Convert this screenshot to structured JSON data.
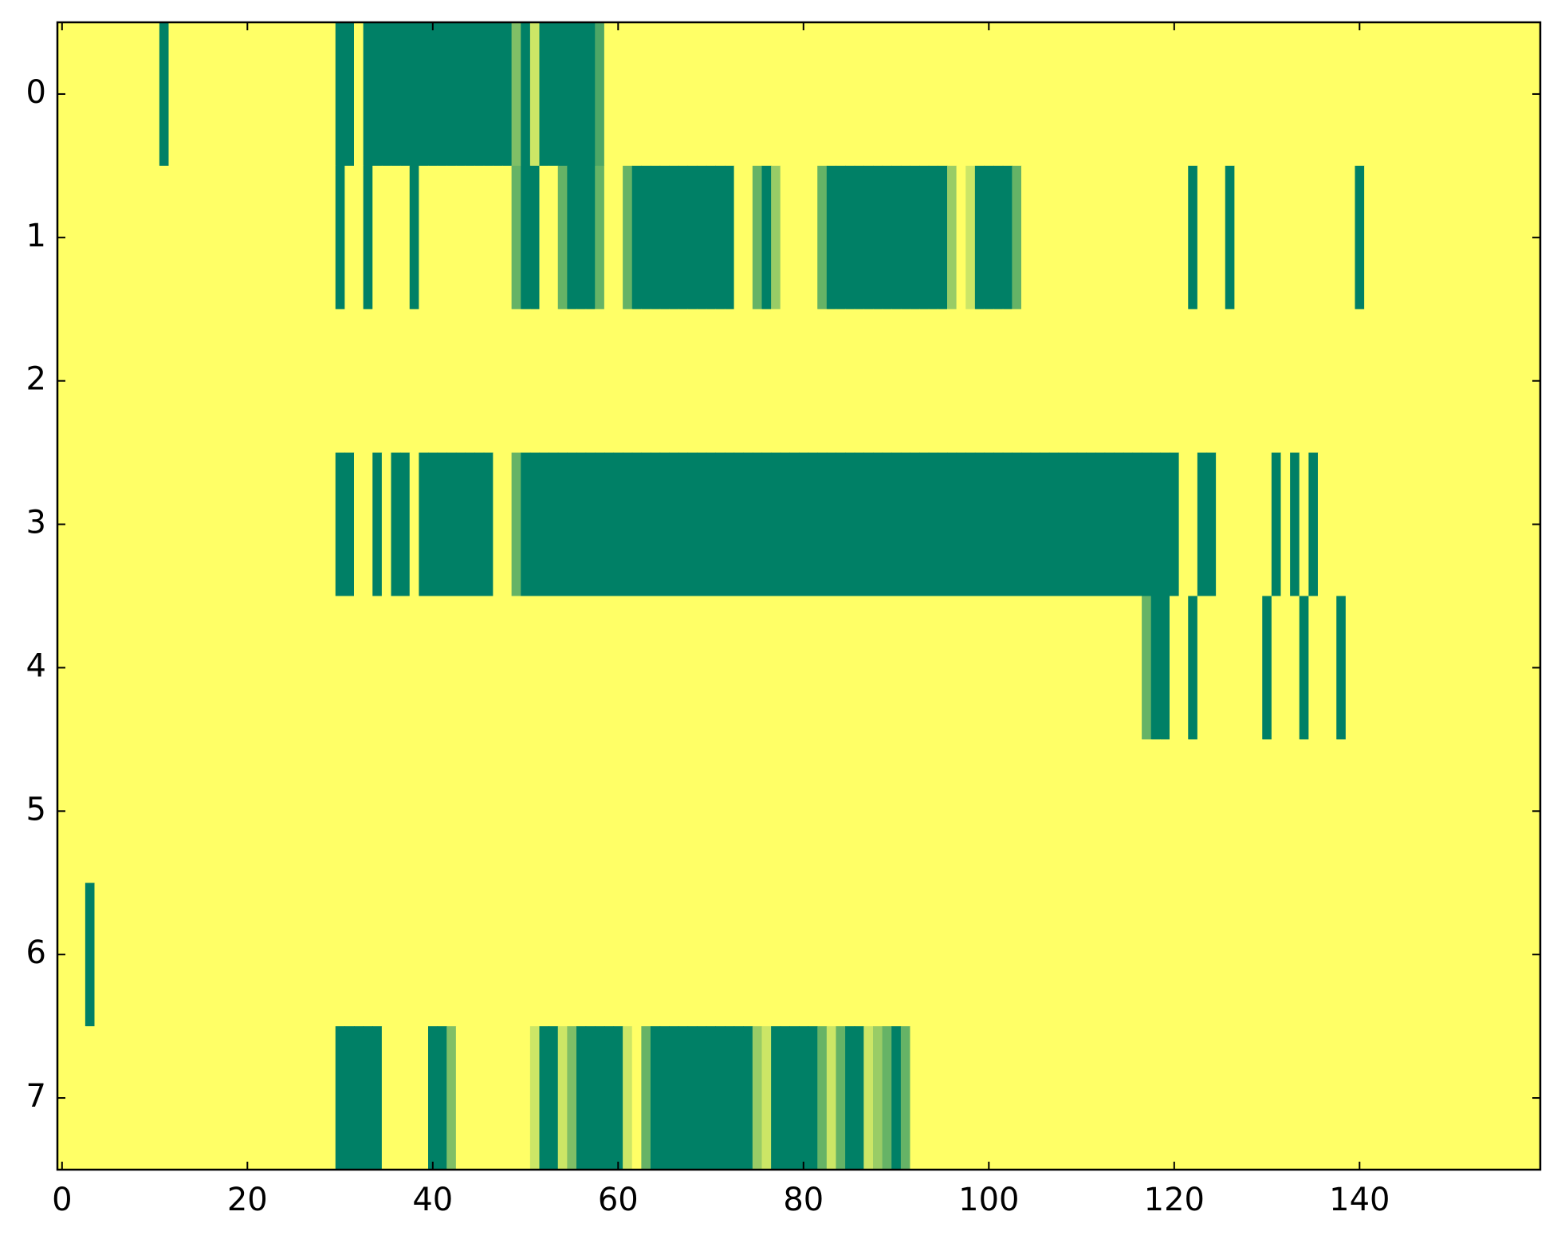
{
  "chart_data": {
    "type": "heatmap",
    "colormap": "summer",
    "clim": [
      0,
      1
    ],
    "xlim": [
      -0.5,
      159.5
    ],
    "ylim": [
      7.5,
      -0.5
    ],
    "xticks": [
      0,
      20,
      40,
      60,
      80,
      100,
      120,
      140
    ],
    "yticks": [
      0,
      1,
      2,
      3,
      4,
      5,
      6,
      7
    ],
    "z": [
      [
        1,
        1,
        1,
        1,
        1,
        1,
        1,
        1,
        1,
        1,
        1,
        0,
        1,
        1,
        1,
        1,
        1,
        1,
        1,
        1,
        1,
        1,
        1,
        1,
        1,
        1,
        1,
        1,
        1,
        1,
        0,
        0,
        1,
        0,
        0,
        0,
        0,
        0,
        0,
        0,
        0,
        0,
        0,
        0,
        0,
        0,
        0,
        0,
        0,
        0.5,
        0,
        0.8,
        0,
        0,
        0,
        0,
        0,
        0,
        0.3,
        1,
        1,
        1,
        1,
        1,
        1,
        1,
        1,
        1,
        1,
        1,
        1,
        1,
        1,
        1,
        1,
        1,
        1,
        1,
        1,
        1,
        1,
        1,
        1,
        1,
        1,
        1,
        1,
        1,
        1,
        1,
        1,
        1,
        1,
        1,
        1,
        1,
        1,
        1,
        1,
        1,
        1,
        1,
        1,
        1,
        1,
        1,
        1,
        1,
        1,
        1,
        1,
        1,
        1,
        1,
        1,
        1,
        1,
        1,
        1,
        1,
        1,
        1,
        1,
        1,
        1,
        1,
        1,
        1,
        1,
        1,
        1,
        1,
        1,
        1,
        1,
        1,
        1,
        1,
        1,
        1,
        1,
        1,
        1,
        1,
        1,
        1,
        1,
        1,
        1,
        1,
        1,
        1,
        1,
        1,
        1,
        1,
        1,
        1,
        1,
        1
      ],
      [
        1,
        1,
        1,
        1,
        1,
        1,
        1,
        1,
        1,
        1,
        1,
        1,
        1,
        1,
        1,
        1,
        1,
        1,
        1,
        1,
        1,
        1,
        1,
        1,
        1,
        1,
        1,
        1,
        1,
        1,
        0,
        1,
        1,
        0,
        1,
        1,
        1,
        1,
        0,
        1,
        1,
        1,
        1,
        1,
        1,
        1,
        1,
        1,
        1,
        0.4,
        0,
        0,
        1,
        1,
        0.4,
        0,
        0,
        0,
        0.4,
        1,
        1,
        0.4,
        0,
        0,
        0,
        0,
        0,
        0,
        0,
        0,
        0,
        0,
        0,
        1,
        1,
        0.4,
        0,
        0.6,
        1,
        1,
        1,
        1,
        0.4,
        0,
        0,
        0,
        0,
        0,
        0,
        0,
        0,
        0,
        0,
        0,
        0,
        0,
        0.6,
        1,
        0.8,
        0,
        0,
        0,
        0,
        0.4,
        1,
        1,
        1,
        1,
        1,
        1,
        1,
        1,
        1,
        1,
        1,
        1,
        1,
        1,
        1,
        1,
        1,
        1,
        0,
        1,
        1,
        1,
        0,
        1,
        1,
        1,
        1,
        1,
        1,
        1,
        1,
        1,
        1,
        1,
        1,
        1,
        0,
        1,
        1,
        1,
        1,
        1,
        1,
        1,
        1,
        1,
        1,
        1,
        1,
        1,
        1,
        1,
        1,
        1,
        1,
        1
      ],
      [
        1,
        1,
        1,
        1,
        1,
        1,
        1,
        1,
        1,
        1,
        1,
        1,
        1,
        1,
        1,
        1,
        1,
        1,
        1,
        1,
        1,
        1,
        1,
        1,
        1,
        1,
        1,
        1,
        1,
        1,
        1,
        1,
        1,
        1,
        1,
        1,
        1,
        1,
        1,
        1,
        1,
        1,
        1,
        1,
        1,
        1,
        1,
        1,
        1,
        1,
        1,
        1,
        1,
        1,
        1,
        1,
        1,
        1,
        1,
        1,
        1,
        1,
        1,
        1,
        1,
        1,
        1,
        1,
        1,
        1,
        1,
        1,
        1,
        1,
        1,
        1,
        1,
        1,
        1,
        1,
        1,
        1,
        1,
        1,
        1,
        1,
        1,
        1,
        1,
        1,
        1,
        1,
        1,
        1,
        1,
        1,
        1,
        1,
        1,
        1,
        1,
        1,
        1,
        1,
        1,
        1,
        1,
        1,
        1,
        1,
        1,
        1,
        1,
        1,
        1,
        1,
        1,
        1,
        1,
        1,
        1,
        1,
        1,
        1,
        1,
        1,
        1,
        1,
        1,
        1,
        1,
        1,
        1,
        1,
        1,
        1,
        1,
        1,
        1,
        1,
        1,
        1,
        1,
        1,
        1,
        1,
        1,
        1,
        1,
        1,
        1,
        1,
        1,
        1,
        1,
        1,
        1,
        1,
        1,
        1
      ],
      [
        1,
        1,
        1,
        1,
        1,
        1,
        1,
        1,
        1,
        1,
        1,
        1,
        1,
        1,
        1,
        1,
        1,
        1,
        1,
        1,
        1,
        1,
        1,
        1,
        1,
        1,
        1,
        1,
        1,
        1,
        0,
        0,
        1,
        1,
        0,
        1,
        0,
        0,
        1,
        0,
        0,
        0,
        0,
        0,
        0,
        0,
        0,
        1,
        1,
        0.4,
        0,
        0,
        0,
        0,
        0,
        0,
        0,
        0,
        0,
        0,
        0,
        0,
        0,
        0,
        0,
        0,
        0,
        0,
        0,
        0,
        0,
        0,
        0,
        0,
        0,
        0,
        0,
        0,
        0,
        0,
        0,
        0,
        0,
        0,
        0,
        0,
        0,
        0,
        0,
        0,
        0,
        0,
        0,
        0,
        0,
        0,
        0,
        0,
        0,
        0,
        0,
        0,
        0,
        0,
        0,
        0,
        0,
        0,
        0,
        0,
        0,
        0,
        0,
        0,
        0,
        0,
        0,
        0,
        0,
        0,
        0,
        1,
        1,
        0,
        0,
        1,
        1,
        1,
        1,
        1,
        1,
        0,
        1,
        0,
        1,
        0,
        1,
        1,
        1,
        1,
        1,
        1,
        1,
        1,
        1,
        1,
        1,
        1,
        1,
        1,
        1,
        1,
        1,
        1,
        1,
        1,
        1,
        1,
        1,
        1
      ],
      [
        1,
        1,
        1,
        1,
        1,
        1,
        1,
        1,
        1,
        1,
        1,
        1,
        1,
        1,
        1,
        1,
        1,
        1,
        1,
        1,
        1,
        1,
        1,
        1,
        1,
        1,
        1,
        1,
        1,
        1,
        1,
        1,
        1,
        1,
        1,
        1,
        1,
        1,
        1,
        1,
        1,
        1,
        1,
        1,
        1,
        1,
        1,
        1,
        1,
        1,
        1,
        1,
        1,
        1,
        1,
        1,
        1,
        1,
        1,
        1,
        1,
        1,
        1,
        1,
        1,
        1,
        1,
        1,
        1,
        1,
        1,
        1,
        1,
        1,
        1,
        1,
        1,
        1,
        1,
        1,
        1,
        1,
        1,
        1,
        1,
        1,
        1,
        1,
        1,
        1,
        1,
        1,
        1,
        1,
        1,
        1,
        1,
        1,
        1,
        1,
        1,
        1,
        1,
        1,
        1,
        1,
        1,
        1,
        1,
        1,
        1,
        1,
        1,
        1,
        1,
        1,
        1,
        0.4,
        0,
        0,
        1,
        1,
        0,
        1,
        1,
        1,
        1,
        1,
        1,
        1,
        0,
        1,
        1,
        1,
        0,
        1,
        1,
        1,
        0,
        1,
        1,
        1,
        1,
        1,
        1,
        1,
        1,
        1,
        1,
        1,
        1,
        1,
        1,
        1,
        1,
        1,
        1,
        1,
        1,
        1
      ],
      [
        1,
        1,
        1,
        1,
        1,
        1,
        1,
        1,
        1,
        1,
        1,
        1,
        1,
        1,
        1,
        1,
        1,
        1,
        1,
        1,
        1,
        1,
        1,
        1,
        1,
        1,
        1,
        1,
        1,
        1,
        1,
        1,
        1,
        1,
        1,
        1,
        1,
        1,
        1,
        1,
        1,
        1,
        1,
        1,
        1,
        1,
        1,
        1,
        1,
        1,
        1,
        1,
        1,
        1,
        1,
        1,
        1,
        1,
        1,
        1,
        1,
        1,
        1,
        1,
        1,
        1,
        1,
        1,
        1,
        1,
        1,
        1,
        1,
        1,
        1,
        1,
        1,
        1,
        1,
        1,
        1,
        1,
        1,
        1,
        1,
        1,
        1,
        1,
        1,
        1,
        1,
        1,
        1,
        1,
        1,
        1,
        1,
        1,
        1,
        1,
        1,
        1,
        1,
        1,
        1,
        1,
        1,
        1,
        1,
        1,
        1,
        1,
        1,
        1,
        1,
        1,
        1,
        1,
        1,
        1,
        1,
        1,
        1,
        1,
        1,
        1,
        1,
        1,
        1,
        1,
        1,
        1,
        1,
        1,
        1,
        1,
        1,
        1,
        1,
        1,
        1,
        1,
        1,
        1,
        1,
        1,
        1,
        1,
        1,
        1,
        1,
        1,
        1,
        1,
        1,
        1,
        1,
        1,
        1,
        1
      ],
      [
        1,
        1,
        1,
        0,
        1,
        1,
        1,
        1,
        1,
        1,
        1,
        1,
        1,
        1,
        1,
        1,
        1,
        1,
        1,
        1,
        1,
        1,
        1,
        1,
        1,
        1,
        1,
        1,
        1,
        1,
        1,
        1,
        1,
        1,
        1,
        1,
        1,
        1,
        1,
        1,
        1,
        1,
        1,
        1,
        1,
        1,
        1,
        1,
        1,
        1,
        1,
        1,
        1,
        1,
        1,
        1,
        1,
        1,
        1,
        1,
        1,
        1,
        1,
        1,
        1,
        1,
        1,
        1,
        1,
        1,
        1,
        1,
        1,
        1,
        1,
        1,
        1,
        1,
        1,
        1,
        1,
        1,
        1,
        1,
        1,
        1,
        1,
        1,
        1,
        1,
        1,
        1,
        1,
        1,
        1,
        1,
        1,
        1,
        1,
        1,
        1,
        1,
        1,
        1,
        1,
        1,
        1,
        1,
        1,
        1,
        1,
        1,
        1,
        1,
        1,
        1,
        1,
        1,
        1,
        1,
        1,
        1,
        1,
        1,
        1,
        1,
        1,
        1,
        1,
        1,
        1,
        1,
        1,
        1,
        1,
        1,
        1,
        1,
        1,
        1,
        1,
        1,
        1,
        1,
        1,
        1,
        1,
        1,
        1,
        1,
        1,
        1,
        1,
        1,
        1,
        1,
        1,
        1,
        1,
        1
      ],
      [
        1,
        1,
        1,
        1,
        1,
        1,
        1,
        1,
        1,
        1,
        1,
        1,
        1,
        1,
        1,
        1,
        1,
        1,
        1,
        1,
        1,
        1,
        1,
        1,
        1,
        1,
        1,
        1,
        1,
        1,
        0,
        0,
        0,
        0,
        0,
        1,
        1,
        1,
        1,
        1,
        0,
        0,
        0.5,
        1,
        1,
        1,
        1,
        1,
        1,
        1,
        1,
        0.8,
        0,
        0,
        0.8,
        0.5,
        0,
        0,
        0,
        0,
        0,
        0.8,
        1,
        0.4,
        0,
        0,
        0,
        0,
        0,
        0,
        0,
        0,
        0,
        0,
        0,
        0.6,
        0.8,
        0,
        0,
        0,
        0,
        0,
        0.4,
        0.8,
        0.4,
        0,
        0,
        0.8,
        0.6,
        0.4,
        0,
        0.4,
        1,
        1,
        1,
        1,
        1,
        1,
        1,
        1,
        1,
        1,
        1,
        1,
        1,
        1,
        1,
        1,
        1,
        1,
        1,
        1,
        1,
        1,
        1,
        1,
        1,
        1,
        1,
        1,
        1,
        1,
        1,
        1,
        1,
        1,
        1,
        1,
        1,
        1,
        1,
        1,
        1,
        1,
        1,
        1,
        1,
        1,
        1,
        1,
        1,
        1,
        1,
        1,
        1,
        1,
        1,
        1,
        1,
        1,
        1,
        1,
        1,
        1,
        1,
        1,
        1,
        1,
        1,
        1
      ]
    ]
  }
}
